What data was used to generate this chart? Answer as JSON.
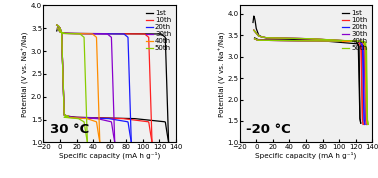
{
  "title_left": "30 °C",
  "title_right": "-20 °C",
  "xlabel": "Specific capacity (mA h g⁻¹)",
  "ylabel": "Potential (V vs. Na⁺/Na)",
  "xlim": [
    -20,
    140
  ],
  "ylim_left": [
    1.0,
    4.0
  ],
  "ylim_right": [
    1.0,
    4.2
  ],
  "yticks_left": [
    1.0,
    1.5,
    2.0,
    2.5,
    3.0,
    3.5,
    4.0
  ],
  "yticks_right": [
    1.0,
    1.5,
    2.0,
    2.5,
    3.0,
    3.5,
    4.0
  ],
  "xticks": [
    -20,
    0,
    20,
    40,
    60,
    80,
    100,
    120,
    140
  ],
  "cycles": [
    "1st",
    "10th",
    "20th",
    "30th",
    "40th",
    "50th"
  ],
  "colors_30": [
    "black",
    "#ff2020",
    "#1a1aff",
    "#8800cc",
    "#ff8c00",
    "#88cc00"
  ],
  "colors_m20": [
    "black",
    "#ff2020",
    "#1a1aff",
    "#8800cc",
    "#ff8c00",
    "#88cc00"
  ],
  "lw": 0.9,
  "legend_fontsize": 5.0,
  "tick_fontsize": 5.0,
  "label_fontsize": 5.2,
  "title_fontsize": 9.5,
  "max_caps_30": [
    130,
    110,
    85,
    65,
    47,
    32
  ],
  "max_caps_m20": [
    125,
    128,
    130,
    132,
    133,
    134
  ],
  "background": "#f0f0f0"
}
